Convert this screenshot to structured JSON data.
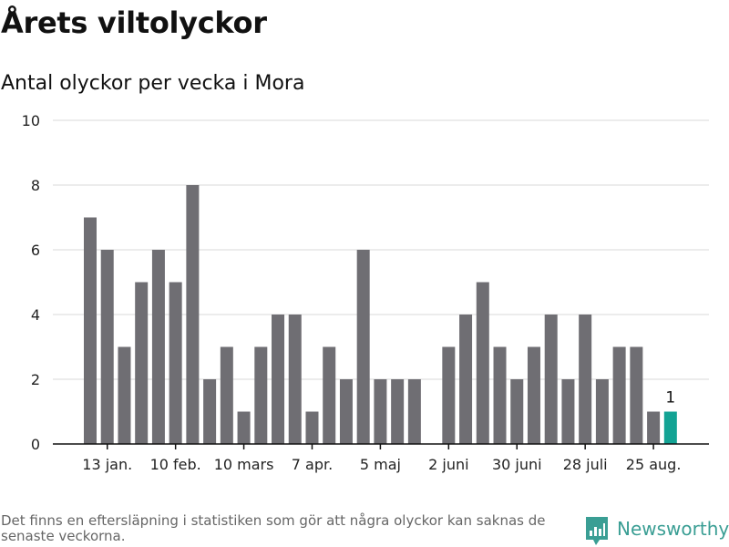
{
  "header": {
    "title": "Årets viltolyckor",
    "subtitle": "Antal olyckor per vecka i Mora"
  },
  "footer": {
    "note": "Det finns en eftersläpning i statistiken som gör att några olyckor kan saknas de senaste veckorna.",
    "brand": "Newsworthy"
  },
  "colors": {
    "bar": "#6f6e73",
    "highlight": "#13a394",
    "grid": "#d9d9d9",
    "axis": "#111111",
    "brand": "#3a9e94"
  },
  "chart_data": {
    "type": "bar",
    "title": "Antal olyckor per vecka i Mora",
    "ylim": [
      0,
      10
    ],
    "y_ticks": [
      0,
      2,
      4,
      6,
      8,
      10
    ],
    "grid": true,
    "weeks": [
      1,
      2,
      3,
      4,
      5,
      6,
      7,
      8,
      9,
      10,
      11,
      12,
      13,
      14,
      15,
      16,
      17,
      18,
      19,
      20,
      21,
      22,
      23,
      24,
      25,
      26,
      27,
      28,
      29,
      30,
      31,
      32,
      33,
      34,
      35
    ],
    "values": [
      7,
      6,
      3,
      5,
      6,
      5,
      8,
      2,
      3,
      1,
      3,
      4,
      4,
      1,
      3,
      2,
      6,
      2,
      2,
      2,
      0,
      3,
      4,
      5,
      3,
      2,
      3,
      4,
      2,
      4,
      2,
      3,
      3,
      1,
      1
    ],
    "x_ticks": [
      {
        "week": 2,
        "label": "13 jan."
      },
      {
        "week": 6,
        "label": "10 feb."
      },
      {
        "week": 10,
        "label": "10 mars"
      },
      {
        "week": 14,
        "label": "7 apr."
      },
      {
        "week": 18,
        "label": "5 maj"
      },
      {
        "week": 22,
        "label": "2 juni"
      },
      {
        "week": 26,
        "label": "30 juni"
      },
      {
        "week": 30,
        "label": "28 juli"
      },
      {
        "week": 34,
        "label": "25 aug."
      }
    ],
    "highlight": {
      "week": 35,
      "label": "1"
    }
  }
}
